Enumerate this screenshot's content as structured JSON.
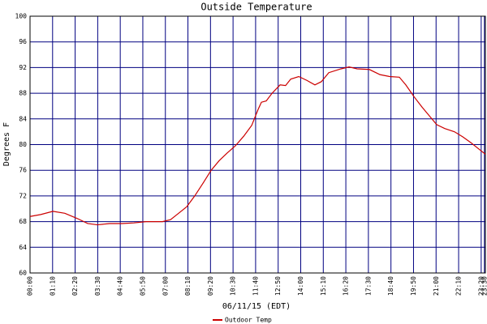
{
  "chart_data": {
    "type": "line",
    "title": "Outside Temperature",
    "x_label": "06/11/15 (EDT)",
    "y_label": "Degrees F",
    "x": [
      0,
      33,
      71,
      108,
      146,
      179,
      209,
      247,
      285,
      322,
      360,
      411,
      436,
      461,
      486,
      511,
      537,
      562,
      587,
      612,
      637,
      663,
      688,
      708,
      718,
      733,
      751,
      776,
      793,
      809,
      834,
      859,
      884,
      904,
      927,
      965,
      990,
      1015,
      1053,
      1086,
      1116,
      1146,
      1166,
      1191,
      1217,
      1242,
      1262,
      1287,
      1317,
      1343,
      1368,
      1393,
      1413
    ],
    "series": [
      {
        "name": "Outdoor Temp",
        "color": "#cc0000",
        "values": [
          68.8,
          69.1,
          69.6,
          69.3,
          68.5,
          67.7,
          67.5,
          67.7,
          67.7,
          67.8,
          68,
          68,
          68.3,
          69.3,
          70.3,
          72,
          74,
          76,
          77.5,
          78.7,
          79.8,
          81.3,
          83,
          85.5,
          86.6,
          86.8,
          88,
          89.3,
          89.2,
          90.2,
          90.6,
          90,
          89.3,
          89.8,
          91.2,
          91.8,
          92.1,
          91.8,
          91.7,
          90.9,
          90.6,
          90.5,
          89.3,
          87.5,
          85.8,
          84.3,
          83.1,
          82.5,
          82,
          81.2,
          80.3,
          79.3,
          78.5
        ]
      }
    ],
    "xlim": [
      0,
      1413
    ],
    "xticks": [
      {
        "value": 0,
        "label": "00:00"
      },
      {
        "value": 70,
        "label": "01:10"
      },
      {
        "value": 140,
        "label": "02:20"
      },
      {
        "value": 210,
        "label": "03:30"
      },
      {
        "value": 280,
        "label": "04:40"
      },
      {
        "value": 350,
        "label": "05:50"
      },
      {
        "value": 420,
        "label": "07:00"
      },
      {
        "value": 490,
        "label": "08:10"
      },
      {
        "value": 560,
        "label": "09:20"
      },
      {
        "value": 630,
        "label": "10:30"
      },
      {
        "value": 700,
        "label": "11:40"
      },
      {
        "value": 770,
        "label": "12:50"
      },
      {
        "value": 840,
        "label": "14:00"
      },
      {
        "value": 910,
        "label": "15:10"
      },
      {
        "value": 980,
        "label": "16:20"
      },
      {
        "value": 1050,
        "label": "17:30"
      },
      {
        "value": 1120,
        "label": "18:40"
      },
      {
        "value": 1190,
        "label": "19:50"
      },
      {
        "value": 1260,
        "label": "21:00"
      },
      {
        "value": 1330,
        "label": "22:10"
      },
      {
        "value": 1400,
        "label": "23:20"
      },
      {
        "value": 1410,
        "label": "23:30"
      }
    ],
    "ylim": [
      60,
      100
    ],
    "yticks": [
      60,
      64,
      68,
      72,
      76,
      80,
      84,
      88,
      92,
      96,
      100
    ],
    "grid": true,
    "grid_color": "#000080"
  }
}
